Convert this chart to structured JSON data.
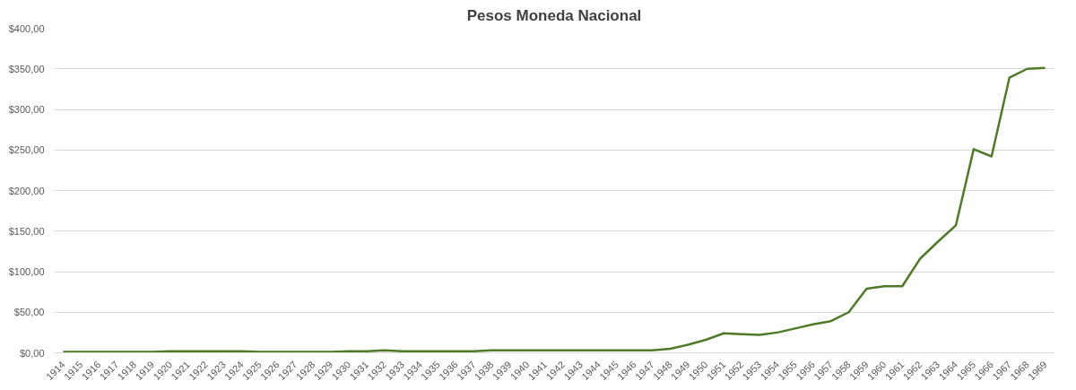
{
  "chart_data": {
    "type": "line",
    "title": "Pesos Moneda Nacional",
    "categories": [
      "1914",
      "1915",
      "1916",
      "1917",
      "1918",
      "1919",
      "1920",
      "1921",
      "1922",
      "1923",
      "1924",
      "1925",
      "1926",
      "1927",
      "1928",
      "1929",
      "1930",
      "1931",
      "1932",
      "1933",
      "1934",
      "1935",
      "1936",
      "1937",
      "1938",
      "1939",
      "1940",
      "1941",
      "1942",
      "1943",
      "1944",
      "1945",
      "1946",
      "1947",
      "1948",
      "1949",
      "1950",
      "1951",
      "1952",
      "1953",
      "1954",
      "1955",
      "1956",
      "1957",
      "1958",
      "1959",
      "1960",
      "1961",
      "1962",
      "1963",
      "1964",
      "1965",
      "1966",
      "1967",
      "1968",
      "1969"
    ],
    "series": [
      {
        "color": "#4f7a28",
        "values": [
          1,
          1,
          1,
          1,
          1,
          1,
          2,
          2,
          2,
          2,
          2,
          1,
          1,
          1,
          1,
          1,
          2,
          2,
          3,
          2,
          2,
          2,
          2,
          2,
          3,
          3,
          3,
          3,
          3,
          3,
          3,
          3,
          3,
          3,
          5,
          10,
          16,
          24,
          23,
          22,
          25,
          30,
          35,
          39,
          50,
          79,
          82,
          82,
          116,
          137,
          157,
          251,
          242,
          339,
          350,
          351
        ]
      }
    ],
    "ylim": [
      0,
      400
    ],
    "yticks": [
      {
        "value": 0,
        "label": "$0,00"
      },
      {
        "value": 50,
        "label": "$50,00"
      },
      {
        "value": 100,
        "label": "$100,00"
      },
      {
        "value": 150,
        "label": "$150,00"
      },
      {
        "value": 200,
        "label": "$200,00"
      },
      {
        "value": 250,
        "label": "$250,00"
      },
      {
        "value": 300,
        "label": "$300,00"
      },
      {
        "value": 350,
        "label": "$350,00"
      },
      {
        "value": 400,
        "label": "$400,00"
      }
    ],
    "grid": "y",
    "marker": "none",
    "line_style": "solid"
  }
}
